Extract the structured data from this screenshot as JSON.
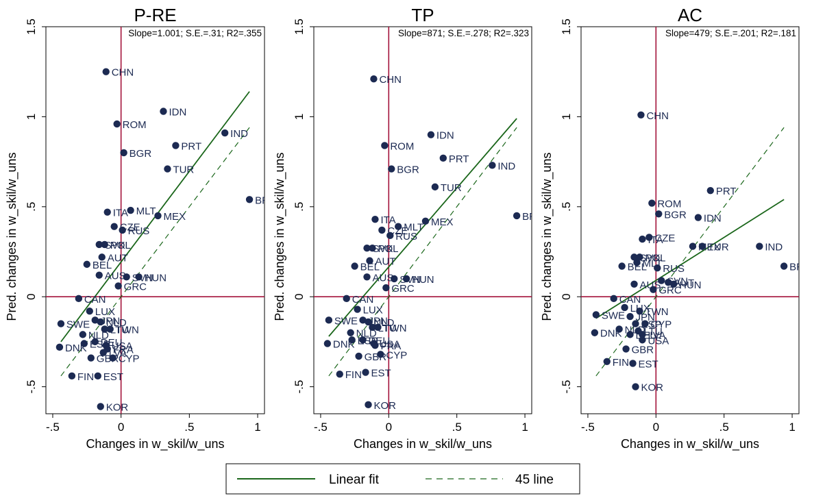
{
  "chart_data": [
    {
      "type": "scatter",
      "title": "P-RE",
      "annotation": "Slope=1.001; S.E.=.31; R2=.355",
      "xlabel": "Changes in w_skil/w_uns",
      "ylabel": "Pred. changes in w_skil/w_uns",
      "xlim": [
        -0.55,
        1.05
      ],
      "ylim": [
        -0.65,
        1.5
      ],
      "xticks": [
        "-.5",
        "0",
        ".5",
        "1"
      ],
      "yticks": [
        "-.5",
        "0",
        ".5",
        "1",
        "1.5"
      ],
      "xtick_values": [
        -0.5,
        0,
        0.5,
        1
      ],
      "ytick_values": [
        -0.5,
        0,
        0.5,
        1,
        1.5
      ],
      "fit_line": {
        "x": [
          -0.44,
          0.94
        ],
        "y": [
          -0.25,
          1.14
        ]
      },
      "points": [
        {
          "label": "CHN",
          "x": -0.11,
          "y": 1.25
        },
        {
          "label": "IDN",
          "x": 0.31,
          "y": 1.03
        },
        {
          "label": "ROM",
          "x": -0.03,
          "y": 0.96
        },
        {
          "label": "IND",
          "x": 0.76,
          "y": 0.91
        },
        {
          "label": "PRT",
          "x": 0.4,
          "y": 0.84
        },
        {
          "label": "BGR",
          "x": 0.02,
          "y": 0.8
        },
        {
          "label": "TUR",
          "x": 0.34,
          "y": 0.71
        },
        {
          "label": "BRA",
          "x": 0.94,
          "y": 0.54
        },
        {
          "label": "ITA",
          "x": -0.1,
          "y": 0.47
        },
        {
          "label": "MLT",
          "x": 0.07,
          "y": 0.48
        },
        {
          "label": "MEX",
          "x": 0.27,
          "y": 0.45
        },
        {
          "label": "CZE",
          "x": -0.05,
          "y": 0.39
        },
        {
          "label": "RUS",
          "x": 0.01,
          "y": 0.37
        },
        {
          "label": "SVK",
          "x": -0.16,
          "y": 0.29
        },
        {
          "label": "POL",
          "x": -0.12,
          "y": 0.29
        },
        {
          "label": "AUT",
          "x": -0.14,
          "y": 0.22
        },
        {
          "label": "BEL",
          "x": -0.25,
          "y": 0.18
        },
        {
          "label": "AUS",
          "x": -0.16,
          "y": 0.12
        },
        {
          "label": "SVN",
          "x": 0.04,
          "y": 0.11
        },
        {
          "label": "HUN",
          "x": 0.13,
          "y": 0.11
        },
        {
          "label": "GRC",
          "x": -0.02,
          "y": 0.06
        },
        {
          "label": "CAN",
          "x": -0.31,
          "y": -0.01
        },
        {
          "label": "LUX",
          "x": -0.23,
          "y": -0.08
        },
        {
          "label": "SWE",
          "x": -0.44,
          "y": -0.15
        },
        {
          "label": "JPN",
          "x": -0.19,
          "y": -0.13
        },
        {
          "label": "NLD",
          "x": -0.15,
          "y": -0.14
        },
        {
          "label": "LTU",
          "x": -0.12,
          "y": -0.18
        },
        {
          "label": "TWN",
          "x": -0.08,
          "y": -0.18
        },
        {
          "label": "NLD",
          "x": -0.28,
          "y": -0.21
        },
        {
          "label": "ESP",
          "x": -0.27,
          "y": -0.26
        },
        {
          "label": "DEU",
          "x": -0.19,
          "y": -0.25
        },
        {
          "label": "USA",
          "x": -0.11,
          "y": -0.27
        },
        {
          "label": "FRA",
          "x": -0.1,
          "y": -0.29
        },
        {
          "label": "DNK",
          "x": -0.45,
          "y": -0.28
        },
        {
          "label": "LVA",
          "x": -0.13,
          "y": -0.31
        },
        {
          "label": "GBR",
          "x": -0.22,
          "y": -0.34
        },
        {
          "label": "CYP",
          "x": -0.06,
          "y": -0.34
        },
        {
          "label": "FIN",
          "x": -0.36,
          "y": -0.44
        },
        {
          "label": "EST",
          "x": -0.17,
          "y": -0.44
        },
        {
          "label": "KOR",
          "x": -0.15,
          "y": -0.61
        }
      ]
    },
    {
      "type": "scatter",
      "title": "TP",
      "annotation": "Slope=871; S.E.=.278; R2=.323",
      "xlabel": "Changes in w_skil/w_uns",
      "ylabel": "Pred. changes in w_skil/w_uns",
      "xlim": [
        -0.55,
        1.05
      ],
      "ylim": [
        -0.65,
        1.5
      ],
      "xticks": [
        "-.5",
        "0",
        ".5",
        "1"
      ],
      "yticks": [
        "-.5",
        "0",
        ".5",
        "1",
        "1.5"
      ],
      "xtick_values": [
        -0.5,
        0,
        0.5,
        1
      ],
      "ytick_values": [
        -0.5,
        0,
        0.5,
        1,
        1.5
      ],
      "fit_line": {
        "x": [
          -0.44,
          0.94
        ],
        "y": [
          -0.22,
          0.99
        ]
      },
      "points": [
        {
          "label": "CHN",
          "x": -0.11,
          "y": 1.21
        },
        {
          "label": "IDN",
          "x": 0.31,
          "y": 0.9
        },
        {
          "label": "ROM",
          "x": -0.03,
          "y": 0.84
        },
        {
          "label": "PRT",
          "x": 0.4,
          "y": 0.77
        },
        {
          "label": "IND",
          "x": 0.76,
          "y": 0.73
        },
        {
          "label": "BGR",
          "x": 0.02,
          "y": 0.71
        },
        {
          "label": "TUR",
          "x": 0.34,
          "y": 0.61
        },
        {
          "label": "BRA",
          "x": 0.94,
          "y": 0.45
        },
        {
          "label": "ITA",
          "x": -0.1,
          "y": 0.43
        },
        {
          "label": "MEX",
          "x": 0.27,
          "y": 0.42
        },
        {
          "label": "MLT",
          "x": 0.07,
          "y": 0.39
        },
        {
          "label": "CZE",
          "x": -0.05,
          "y": 0.37
        },
        {
          "label": "RUS",
          "x": 0.01,
          "y": 0.34
        },
        {
          "label": "SVK",
          "x": -0.16,
          "y": 0.27
        },
        {
          "label": "POL",
          "x": -0.12,
          "y": 0.27
        },
        {
          "label": "AUT",
          "x": -0.14,
          "y": 0.2
        },
        {
          "label": "BEL",
          "x": -0.25,
          "y": 0.17
        },
        {
          "label": "AUS",
          "x": -0.16,
          "y": 0.11
        },
        {
          "label": "SVN",
          "x": 0.04,
          "y": 0.1
        },
        {
          "label": "HUN",
          "x": 0.13,
          "y": 0.1
        },
        {
          "label": "GRC",
          "x": -0.02,
          "y": 0.05
        },
        {
          "label": "CAN",
          "x": -0.31,
          "y": -0.01
        },
        {
          "label": "LUX",
          "x": -0.23,
          "y": -0.07
        },
        {
          "label": "SWE",
          "x": -0.44,
          "y": -0.13
        },
        {
          "label": "JPN",
          "x": -0.19,
          "y": -0.13
        },
        {
          "label": "NLD",
          "x": -0.15,
          "y": -0.14
        },
        {
          "label": "LTU",
          "x": -0.12,
          "y": -0.17
        },
        {
          "label": "TWN",
          "x": -0.08,
          "y": -0.17
        },
        {
          "label": "NLD",
          "x": -0.28,
          "y": -0.2
        },
        {
          "label": "ESP",
          "x": -0.27,
          "y": -0.24
        },
        {
          "label": "DEU",
          "x": -0.19,
          "y": -0.24
        },
        {
          "label": "USA",
          "x": -0.11,
          "y": -0.26
        },
        {
          "label": "FRA",
          "x": -0.1,
          "y": -0.27
        },
        {
          "label": "DNK",
          "x": -0.45,
          "y": -0.26
        },
        {
          "label": "GBR",
          "x": -0.22,
          "y": -0.33
        },
        {
          "label": "CYP",
          "x": -0.06,
          "y": -0.32
        },
        {
          "label": "FIN",
          "x": -0.36,
          "y": -0.43
        },
        {
          "label": "EST",
          "x": -0.17,
          "y": -0.42
        },
        {
          "label": "KOR",
          "x": -0.15,
          "y": -0.6
        }
      ]
    },
    {
      "type": "scatter",
      "title": "AC",
      "annotation": "Slope=479; S.E.=.201; R2=.181",
      "xlabel": "Changes in w_skil/w_uns",
      "ylabel": "Pred. changes in w_skil/w_uns",
      "xlim": [
        -0.55,
        1.05
      ],
      "ylim": [
        -0.65,
        1.5
      ],
      "xticks": [
        "-.5",
        "0",
        ".5",
        "1"
      ],
      "yticks": [
        "-.5",
        "0",
        ".5",
        "1",
        "1.5"
      ],
      "xtick_values": [
        -0.5,
        0,
        0.5,
        1
      ],
      "ytick_values": [
        -0.5,
        0,
        0.5,
        1,
        1.5
      ],
      "fit_line": {
        "x": [
          -0.44,
          0.94
        ],
        "y": [
          -0.12,
          0.54
        ]
      },
      "points": [
        {
          "label": "CHN",
          "x": -0.11,
          "y": 1.01
        },
        {
          "label": "PRT",
          "x": 0.4,
          "y": 0.59
        },
        {
          "label": "ROM",
          "x": -0.03,
          "y": 0.52
        },
        {
          "label": "BGR",
          "x": 0.02,
          "y": 0.46
        },
        {
          "label": "IDN",
          "x": 0.31,
          "y": 0.44
        },
        {
          "label": "CZE",
          "x": -0.05,
          "y": 0.33
        },
        {
          "label": "ITA",
          "x": -0.1,
          "y": 0.32
        },
        {
          "label": "MEX",
          "x": 0.27,
          "y": 0.28
        },
        {
          "label": "TUR",
          "x": 0.34,
          "y": 0.28
        },
        {
          "label": "IND",
          "x": 0.76,
          "y": 0.28
        },
        {
          "label": "SVK",
          "x": -0.16,
          "y": 0.22
        },
        {
          "label": "POL",
          "x": -0.12,
          "y": 0.22
        },
        {
          "label": "MLT",
          "x": -0.14,
          "y": 0.19
        },
        {
          "label": "BEL",
          "x": -0.25,
          "y": 0.17
        },
        {
          "label": "RUS",
          "x": 0.01,
          "y": 0.16
        },
        {
          "label": "BRA",
          "x": 0.94,
          "y": 0.17
        },
        {
          "label": "SVN",
          "x": 0.04,
          "y": 0.09
        },
        {
          "label": "AUS",
          "x": -0.16,
          "y": 0.07
        },
        {
          "label": "AUT",
          "x": 0.09,
          "y": 0.08
        },
        {
          "label": "HUN",
          "x": 0.13,
          "y": 0.07
        },
        {
          "label": "GRC",
          "x": -0.02,
          "y": 0.04
        },
        {
          "label": "CAN",
          "x": -0.31,
          "y": -0.01
        },
        {
          "label": "LUX",
          "x": -0.23,
          "y": -0.06
        },
        {
          "label": "TWN",
          "x": -0.12,
          "y": -0.08
        },
        {
          "label": "SWE",
          "x": -0.44,
          "y": -0.1
        },
        {
          "label": "JPN",
          "x": -0.19,
          "y": -0.11
        },
        {
          "label": "ESP",
          "x": -0.15,
          "y": -0.15
        },
        {
          "label": "CYP",
          "x": -0.08,
          "y": -0.15
        },
        {
          "label": "LTU",
          "x": -0.13,
          "y": -0.19
        },
        {
          "label": "NLD",
          "x": -0.27,
          "y": -0.18
        },
        {
          "label": "DEU",
          "x": -0.19,
          "y": -0.21
        },
        {
          "label": "LVA",
          "x": -0.1,
          "y": -0.21
        },
        {
          "label": "DNK",
          "x": -0.45,
          "y": -0.2
        },
        {
          "label": "USA",
          "x": -0.1,
          "y": -0.24
        },
        {
          "label": "GBR",
          "x": -0.22,
          "y": -0.29
        },
        {
          "label": "FIN",
          "x": -0.36,
          "y": -0.36
        },
        {
          "label": "EST",
          "x": -0.17,
          "y": -0.37
        },
        {
          "label": "KOR",
          "x": -0.15,
          "y": -0.5
        }
      ]
    }
  ],
  "legend": {
    "placement": "bottom-center",
    "items": [
      {
        "label": "Linear fit",
        "style": "solid",
        "color": "#1a661a"
      },
      {
        "label": "45 line",
        "style": "dashed",
        "color": "#1a661a"
      }
    ]
  },
  "colors": {
    "marker": "#1c2a52",
    "reference_line": "#a3123a",
    "fit_line": "#1a661a",
    "axis": "#000000"
  }
}
